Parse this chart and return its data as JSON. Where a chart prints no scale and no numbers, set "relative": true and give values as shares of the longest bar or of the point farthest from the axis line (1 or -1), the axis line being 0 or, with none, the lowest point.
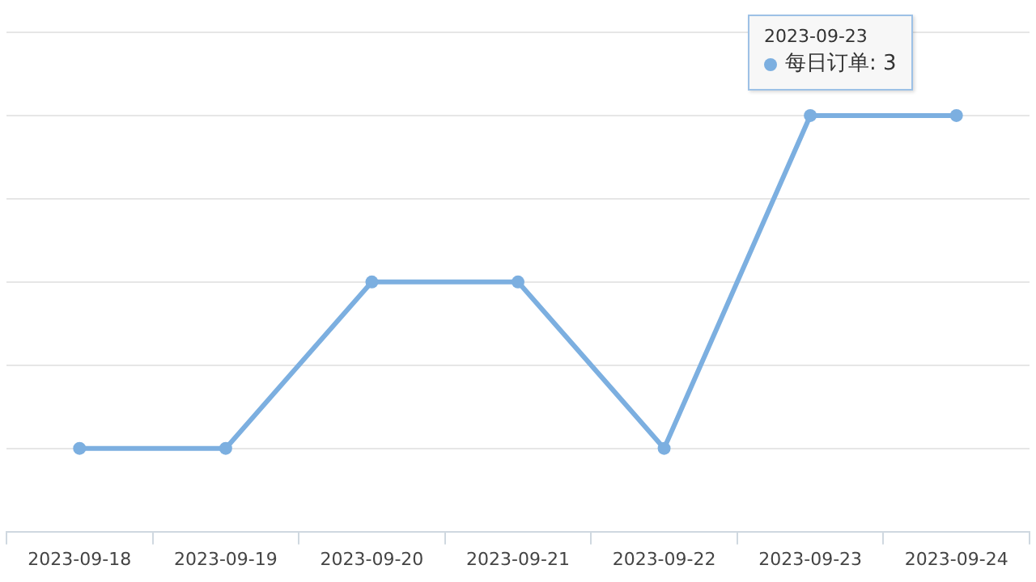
{
  "chart_data": {
    "type": "line",
    "categories": [
      "2023-09-18",
      "2023-09-19",
      "2023-09-20",
      "2023-09-21",
      "2023-09-22",
      "2023-09-23",
      "2023-09-24"
    ],
    "series": [
      {
        "color": "#7cafe0",
        "values": [
          0.2,
          0.2,
          0.6,
          0.6,
          0.2,
          1,
          1
        ]
      }
    ],
    "relative": true,
    "grid": "y",
    "tick_labels": "x",
    "marker": "circle",
    "line_style": "solid",
    "legend": false,
    "annotations": [
      "2023-09-23",
      "每日订单: 3"
    ]
  }
}
